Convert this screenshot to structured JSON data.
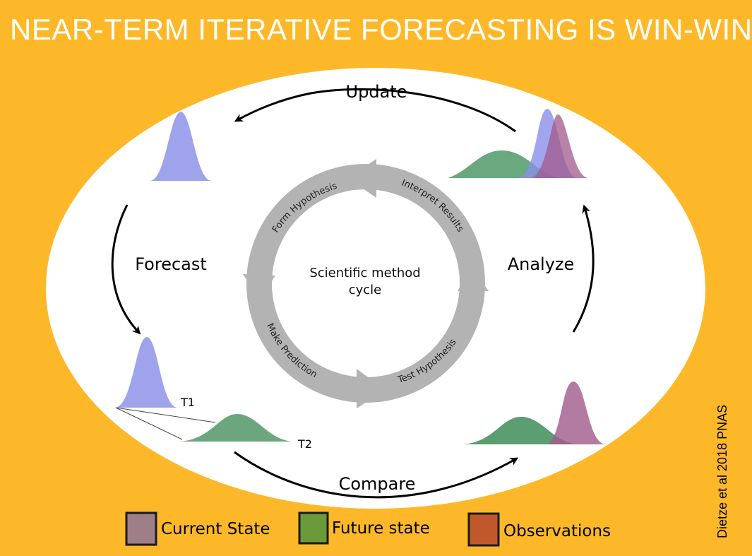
{
  "title": "NEAR-TERM ITERATIVE FORECASTING IS WIN-WIN",
  "stages": {
    "update": "Update",
    "forecast": "Forecast",
    "analyze": "Analyze",
    "compare": "Compare"
  },
  "time_labels": {
    "t1": "T1",
    "t2": "T2"
  },
  "center": {
    "line1": "Scientific method",
    "line2": "cycle"
  },
  "cycle_steps": {
    "form": "Form Hypothesis",
    "interpret": "Interpret Results",
    "test": "Test Hypothesis",
    "predict": "Make Prediction"
  },
  "legend": [
    {
      "label": "Current State",
      "color": "#9E7F88"
    },
    {
      "label": "Future state",
      "color": "#6A9A3A"
    },
    {
      "label": "Observations",
      "color": "#C0582C"
    }
  ],
  "colors": {
    "background": "#FDB82A",
    "forecast_dist": "#9FA3EB",
    "future_dist": "#6BA67E",
    "observation_dist": "#B06B8A",
    "cycle_ring": "#B3B3B3"
  },
  "credit": "Dietze et al 2018 PNAS"
}
